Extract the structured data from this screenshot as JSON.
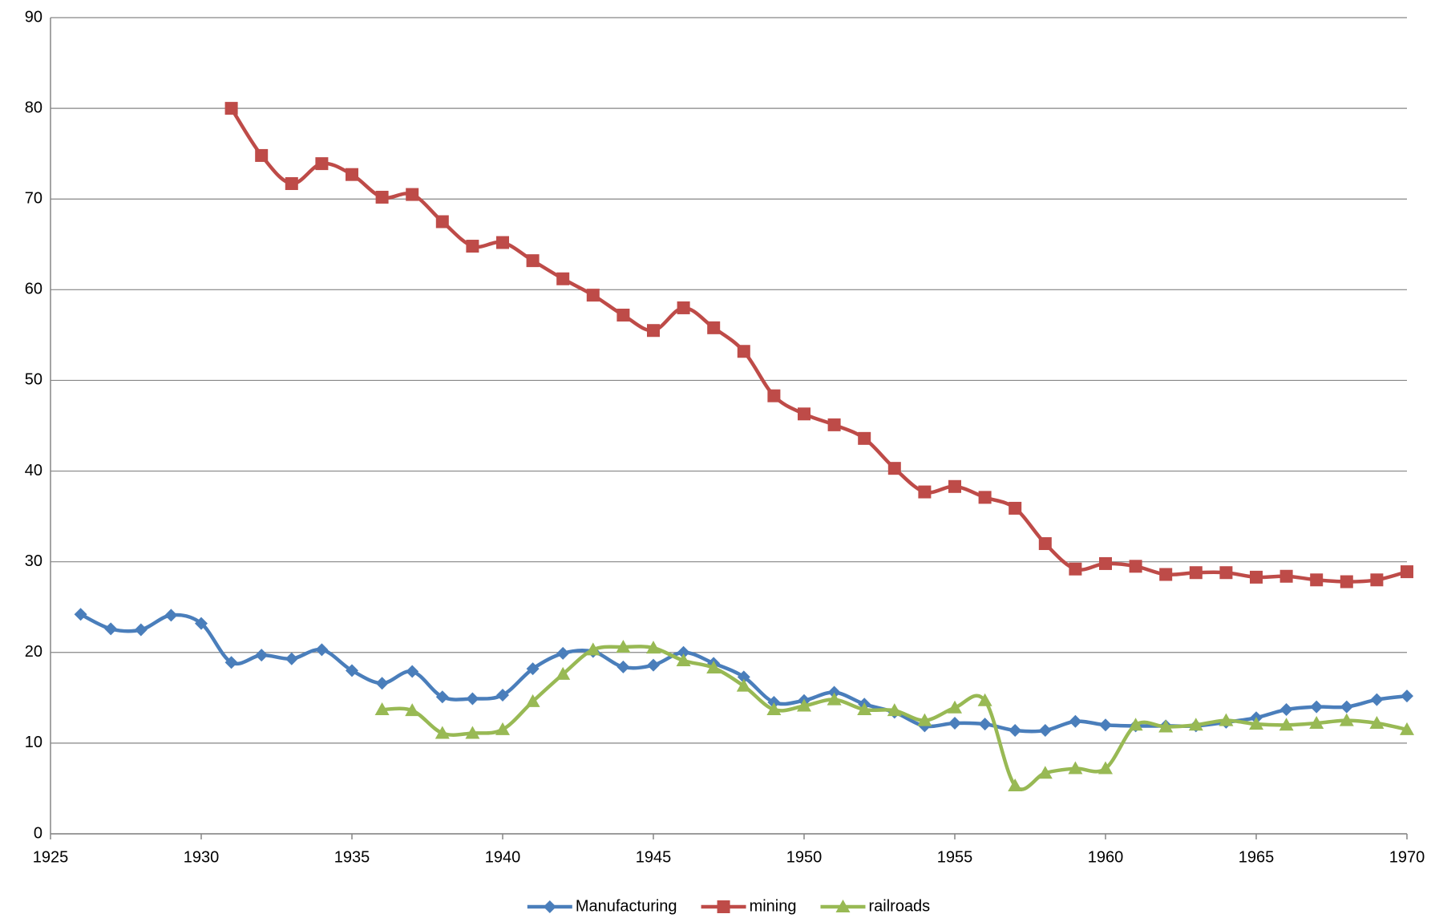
{
  "chart_data": {
    "type": "line",
    "x": [
      1926,
      1927,
      1928,
      1929,
      1930,
      1931,
      1932,
      1933,
      1934,
      1935,
      1936,
      1937,
      1938,
      1939,
      1940,
      1941,
      1942,
      1943,
      1944,
      1945,
      1946,
      1947,
      1948,
      1949,
      1950,
      1951,
      1952,
      1953,
      1954,
      1955,
      1956,
      1957,
      1958,
      1959,
      1960,
      1961,
      1962,
      1963,
      1964,
      1965,
      1966,
      1967,
      1968,
      1969,
      1970
    ],
    "series": [
      {
        "name": "Manufacturing",
        "color": "#4a7ebb",
        "marker": "diamond",
        "values": [
          24.2,
          22.6,
          22.5,
          24.1,
          23.2,
          18.9,
          19.7,
          19.3,
          20.3,
          18.0,
          16.6,
          17.9,
          15.1,
          14.9,
          15.3,
          18.2,
          19.9,
          20.1,
          18.4,
          18.6,
          20.0,
          18.8,
          17.3,
          14.5,
          14.7,
          15.6,
          14.3,
          13.4,
          11.9,
          12.2,
          12.1,
          11.4,
          11.4,
          12.4,
          12.0,
          11.9,
          11.9,
          11.9,
          12.3,
          12.8,
          13.7,
          14.0,
          14.0,
          14.8,
          15.2
        ]
      },
      {
        "name": "mining",
        "color": "#be4b48",
        "marker": "square",
        "values": [
          null,
          null,
          null,
          null,
          null,
          80.0,
          74.8,
          71.7,
          73.9,
          72.7,
          70.2,
          70.5,
          67.5,
          64.8,
          65.2,
          63.2,
          61.2,
          59.4,
          57.2,
          55.5,
          58.0,
          55.8,
          53.2,
          48.3,
          46.3,
          45.1,
          43.6,
          40.3,
          37.7,
          38.3,
          37.1,
          35.9,
          32.0,
          29.2,
          29.8,
          29.5,
          28.6,
          28.8,
          28.8,
          28.3,
          28.4,
          28.0,
          27.8,
          28.0,
          28.9
        ]
      },
      {
        "name": "railroads",
        "color": "#98b954",
        "marker": "triangle",
        "values": [
          null,
          null,
          null,
          null,
          null,
          null,
          null,
          null,
          null,
          null,
          13.7,
          13.6,
          11.1,
          11.1,
          11.5,
          14.6,
          17.6,
          20.3,
          20.6,
          20.5,
          19.1,
          18.3,
          16.3,
          13.7,
          14.1,
          14.8,
          13.7,
          13.6,
          12.5,
          13.9,
          14.7,
          5.3,
          6.7,
          7.2,
          7.2,
          12.0,
          11.8,
          12.0,
          12.5,
          12.1,
          12.0,
          12.2,
          12.5,
          12.2,
          11.5
        ]
      }
    ],
    "xlim": [
      1925,
      1970
    ],
    "xticks": [
      1925,
      1930,
      1935,
      1940,
      1945,
      1950,
      1955,
      1960,
      1965,
      1970
    ],
    "ylim": [
      0,
      90
    ],
    "yticks": [
      0,
      10,
      20,
      30,
      40,
      50,
      60,
      70,
      80,
      90
    ],
    "grid": true,
    "legend": "bottom",
    "smooth": true
  }
}
